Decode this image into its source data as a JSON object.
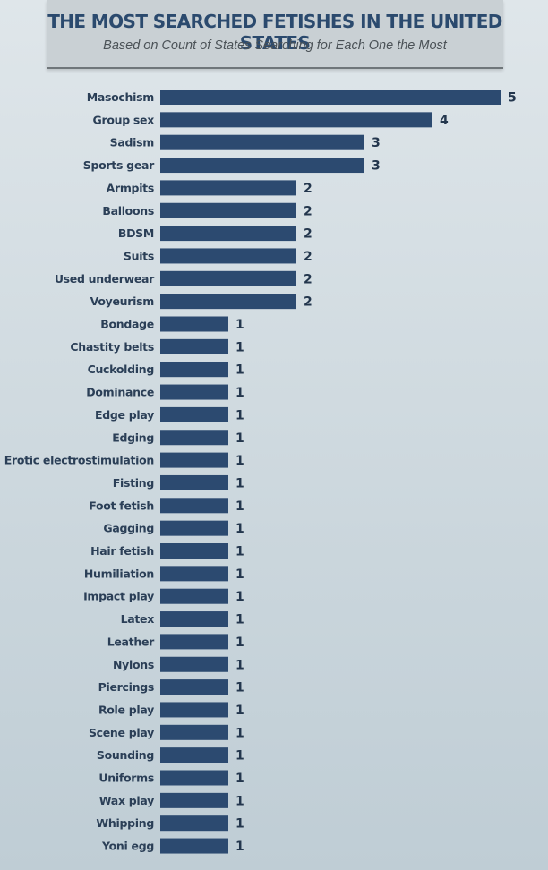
{
  "header": {
    "title": "THE MOST SEARCHED FETISHES IN THE UNITED STATES",
    "subtitle": "Based on Count of States Searching for Each One the Most"
  },
  "colors": {
    "bar": "#2c4a70",
    "header_bg": "#c9d0d4",
    "title": "#2b4a6e"
  },
  "chart_data": {
    "type": "bar",
    "orientation": "horizontal",
    "title": "THE MOST SEARCHED FETISHES IN THE UNITED STATES",
    "subtitle": "Based on Count of States Searching for Each One the Most",
    "xlabel": "",
    "ylabel": "",
    "grid": false,
    "data_labels": true,
    "categories": [
      "Masochism",
      "Group sex",
      "Sadism",
      "Sports gear",
      "Armpits",
      "Balloons",
      "BDSM",
      "Suits",
      "Used underwear",
      "Voyeurism",
      "Bondage",
      "Chastity belts",
      "Cuckolding",
      "Dominance",
      "Edge play",
      "Edging",
      "Erotic electrostimulation",
      "Fisting",
      "Foot fetish",
      "Gagging",
      "Hair fetish",
      "Humiliation",
      "Impact play",
      "Latex",
      "Leather",
      "Nylons",
      "Piercings",
      "Role play",
      "Scene play",
      "Sounding",
      "Uniforms",
      "Wax play",
      "Whipping",
      "Yoni egg"
    ],
    "values": [
      5,
      4,
      3,
      3,
      2,
      2,
      2,
      2,
      2,
      2,
      1,
      1,
      1,
      1,
      1,
      1,
      1,
      1,
      1,
      1,
      1,
      1,
      1,
      1,
      1,
      1,
      1,
      1,
      1,
      1,
      1,
      1,
      1,
      1
    ],
    "xlim": [
      0,
      5
    ]
  }
}
